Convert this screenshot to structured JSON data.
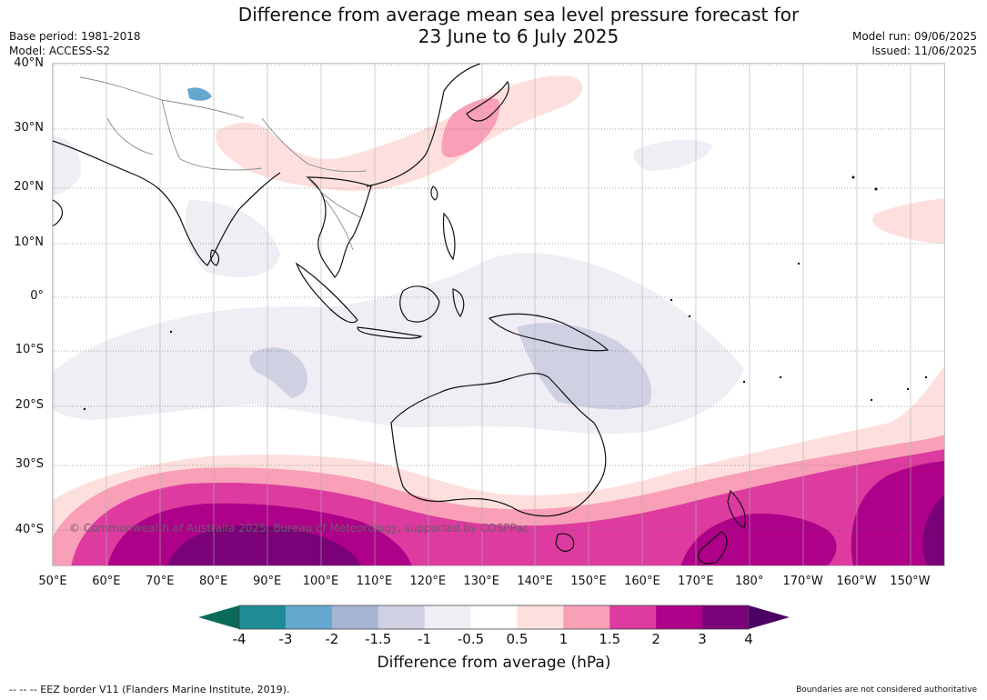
{
  "header": {
    "title_line1": "Difference from average mean sea level pressure forecast for",
    "title_line2": "23 June to 6 July 2025",
    "base_period": "Base period: 1981-2018",
    "model": "Model: ACCESS-S2",
    "model_run": "Model run: 09/06/2025",
    "issued": "Issued: 11/06/2025"
  },
  "map": {
    "lat_labels": [
      "40°N",
      "30°N",
      "20°N",
      "10°N",
      "0°",
      "10°S",
      "20°S",
      "30°S",
      "40°S"
    ],
    "lon_labels": [
      "50°E",
      "60°E",
      "70°E",
      "80°E",
      "90°E",
      "100°E",
      "110°E",
      "120°E",
      "130°E",
      "140°E",
      "150°E",
      "160°E",
      "170°E",
      "180°",
      "170°W",
      "160°W",
      "150°W"
    ],
    "copyright": "© Commonwealth of Australia 2025, Bureau of Meteorology, supported by COSPPac"
  },
  "colorbar": {
    "tick_labels": [
      "-4",
      "-3",
      "-2",
      "-1.5",
      "-1",
      "-0.5",
      "0.5",
      "1",
      "1.5",
      "2",
      "3",
      "4"
    ],
    "low_extend_color": "#0b6b5a",
    "high_extend_color": "#4b0063",
    "colors": [
      "#1e8c95",
      "#65a8cf",
      "#a7b5d4",
      "#cfd1e3",
      "#f1edf4",
      "#ffffff",
      "#fde0dd",
      "#f99fb8",
      "#dd3b9f",
      "#ae0089",
      "#7a0177"
    ],
    "label": "Difference from average (hPa)"
  },
  "footer": {
    "eez_note": "--  --  -- EEZ border V11 (Flanders Marine Institute, 2019).",
    "boundary_note": "Boundaries are not considered authoritative"
  }
}
